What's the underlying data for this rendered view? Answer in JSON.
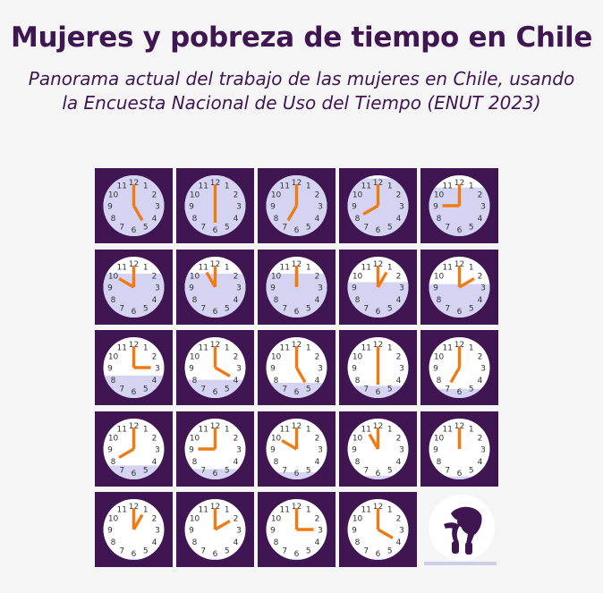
{
  "header": {
    "title": "Mujeres y pobreza de tiempo en Chile",
    "subtitle_line1": "Panorama actual del trabajo de las mujeres en Chile, usando",
    "subtitle_line2": "la Encuesta Nacional de Uso del Tiempo (ENUT 2023)"
  },
  "colors": {
    "tile_bg": "#3f1552",
    "clock_face": "#ffffff",
    "clock_fill": "#d4d3f1",
    "hands": "#f07a14",
    "numbers": "#333333",
    "text": "#3f1651"
  },
  "clock_numbers": [
    "12",
    "1",
    "2",
    "3",
    "4",
    "5",
    "6",
    "7",
    "8",
    "9",
    "10",
    "11"
  ],
  "clocks": [
    {
      "time": "5:00"
    },
    {
      "time": "6:00"
    },
    {
      "time": "7:00"
    },
    {
      "time": "8:00"
    },
    {
      "time": "9:00"
    },
    {
      "time": "10:00"
    },
    {
      "time": "11:00"
    },
    {
      "time": "12:00"
    },
    {
      "time": "13:00"
    },
    {
      "time": "14:00"
    },
    {
      "time": "15:00"
    },
    {
      "time": "16:00"
    },
    {
      "time": "17:00"
    },
    {
      "time": "18:00"
    },
    {
      "time": "19:00"
    },
    {
      "time": "20:00"
    },
    {
      "time": "21:00"
    },
    {
      "time": "22:00"
    },
    {
      "time": "23:00"
    },
    {
      "time": "24:00"
    },
    {
      "time": "1:00"
    },
    {
      "time": "2:00"
    },
    {
      "time": "3:00"
    },
    {
      "time": "4:00"
    }
  ],
  "fill_levels": [
    1.0,
    1.0,
    1.0,
    0.95,
    0.8,
    0.72,
    0.72,
    0.72,
    0.58,
    0.55,
    0.37,
    0.3,
    0.25,
    0.2,
    0.15,
    0.23,
    0.17,
    0.12,
    0.06,
    0.05,
    0.02,
    0.02,
    0.02,
    0.02
  ],
  "final_icon": "exhausted-woman-icon"
}
